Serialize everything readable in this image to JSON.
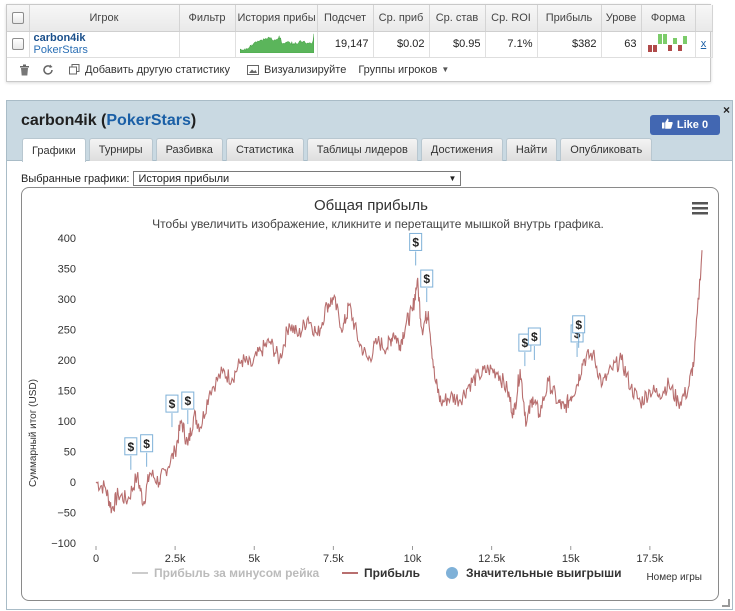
{
  "table": {
    "headers": [
      "",
      "Игрок",
      "Фильтр",
      "История прибы",
      "Подсчет",
      "Ср. приб",
      "Ср. став",
      "Ср. ROI",
      "Прибыль",
      "Урове",
      "Форма",
      ""
    ],
    "row": {
      "player_name": "carbon4ik",
      "player_site": "PokerStars",
      "filter": "",
      "count": "19,147",
      "avg_profit": "$0.02",
      "avg_stake": "$0.95",
      "avg_roi": "7.1%",
      "profit": "$382",
      "level": "63",
      "remove": "x"
    }
  },
  "toolbar": {
    "add_stats": "Добавить другую статистику",
    "visualize": "Визуализируйте",
    "groups": "Группы игроков"
  },
  "panel": {
    "title_name": "carbon4ik",
    "title_open": " (",
    "title_site": "PokerStars",
    "title_close": ")",
    "like_label": "Like 0",
    "close_label": "×",
    "tabs": [
      "Графики",
      "Турниры",
      "Разбивка",
      "Статистика",
      "Таблицы лидеров",
      "Достижения",
      "Найти",
      "Опубликовать"
    ],
    "selector_label": "Выбранные графики:",
    "selector_value": "История прибыли"
  },
  "chart_data": {
    "type": "line",
    "title": "Общая прибыль",
    "subtitle": "Чтобы увеличить изображение, кликните и перетащите мышкой внутрь графика.",
    "ylabel": "Суммарный итог (USD)",
    "xlabel": "Номер игры",
    "xlim": [
      0,
      19147
    ],
    "ylim": [
      -100,
      400
    ],
    "x_ticks": [
      0,
      2500,
      5000,
      7500,
      10000,
      12500,
      15000,
      17500
    ],
    "x_tick_labels": [
      "0",
      "2.5k",
      "5k",
      "7.5k",
      "10k",
      "12.5k",
      "15k",
      "17.5k"
    ],
    "y_ticks": [
      -100,
      -50,
      0,
      50,
      100,
      150,
      200,
      250,
      300,
      350,
      400
    ],
    "y_tick_labels": [
      "−100",
      "−50",
      "0",
      "50",
      "100",
      "150",
      "200",
      "250",
      "300",
      "350",
      "400"
    ],
    "legend": [
      "Прибыль за минусом рейка",
      "Прибыль",
      "Значительные выигрыши"
    ],
    "legend_placement": "bottom",
    "series": [
      {
        "name": "Прибыль",
        "color": "#b86f6f",
        "x": [
          0,
          300,
          500,
          700,
          1000,
          1300,
          1500,
          1700,
          2000,
          2200,
          2500,
          2700,
          2900,
          3100,
          3300,
          3600,
          4000,
          4300,
          4600,
          4900,
          5200,
          5500,
          5800,
          6100,
          6400,
          6700,
          7000,
          7300,
          7500,
          7800,
          8000,
          8300,
          8600,
          8900,
          9200,
          9400,
          9600,
          9800,
          10000,
          10150,
          10300,
          10500,
          10700,
          10900,
          11200,
          11500,
          11800,
          12100,
          12400,
          12700,
          13000,
          13200,
          13400,
          13600,
          13800,
          14000,
          14300,
          14600,
          14800,
          15000,
          15200,
          15400,
          15700,
          16000,
          16300,
          16600,
          16900,
          17200,
          17500,
          17800,
          18100,
          18400,
          18700,
          18900,
          19147
        ],
        "y": [
          0,
          -10,
          -45,
          -20,
          -30,
          10,
          -35,
          15,
          0,
          20,
          50,
          100,
          60,
          110,
          90,
          150,
          180,
          170,
          200,
          190,
          215,
          230,
          200,
          260,
          240,
          270,
          240,
          290,
          300,
          250,
          290,
          230,
          200,
          230,
          220,
          245,
          225,
          260,
          280,
          330,
          250,
          280,
          170,
          130,
          140,
          135,
          160,
          175,
          185,
          180,
          150,
          110,
          185,
          95,
          140,
          110,
          165,
          130,
          120,
          140,
          160,
          200,
          210,
          160,
          185,
          200,
          155,
          130,
          150,
          145,
          160,
          130,
          150,
          200,
          380
        ]
      }
    ],
    "markers": [
      {
        "x": 1100,
        "y": 20,
        "label": "$"
      },
      {
        "x": 1600,
        "y": 25,
        "label": "$"
      },
      {
        "x": 2400,
        "y": 90,
        "label": "$"
      },
      {
        "x": 2900,
        "y": 95,
        "label": "$"
      },
      {
        "x": 10100,
        "y": 355,
        "label": "$"
      },
      {
        "x": 10450,
        "y": 295,
        "label": "$"
      },
      {
        "x": 13550,
        "y": 190,
        "label": "$"
      },
      {
        "x": 13850,
        "y": 200,
        "label": "$"
      },
      {
        "x": 15200,
        "y": 205,
        "label": "$"
      },
      {
        "x": 15250,
        "y": 220,
        "label": "$"
      }
    ]
  }
}
